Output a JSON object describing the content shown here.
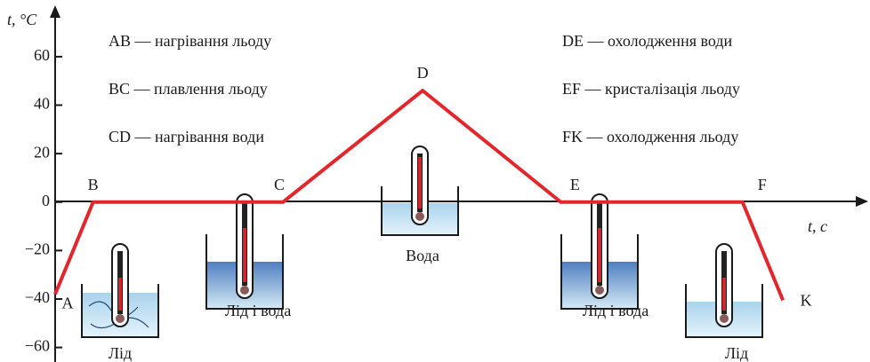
{
  "chart_data": {
    "type": "line",
    "y_label": "t, °C",
    "x_label": "t, c",
    "x": [
      0,
      4.7,
      28.2,
      45.5,
      62.6,
      85.1,
      90.1
    ],
    "xlim": [
      0,
      100
    ],
    "series": [
      {
        "color": "#e3262c",
        "values": [
          -38,
          0,
          0,
          46,
          0,
          0,
          -40.5
        ]
      }
    ],
    "point_labels": [
      "A",
      "B",
      "C",
      "D",
      "E",
      "F",
      "K"
    ],
    "ylim": [
      -66,
      79
    ],
    "yticks": [
      {
        "value": -60,
        "label": "−60"
      },
      {
        "value": -40,
        "label": "−40"
      },
      {
        "value": -20,
        "label": "−20"
      },
      0,
      20,
      40,
      60
    ],
    "annotations": [
      "AB — нагрівання льоду",
      "BC — плавлення льоду",
      "CD — нагрівання води",
      "DE — охолодження води",
      "EF — кристалізація льоду",
      "FK — охолодження льоду"
    ],
    "illustrations": [
      "Лід",
      "Лід і вода",
      "Вода",
      "Лід і вода",
      "Лід"
    ]
  }
}
